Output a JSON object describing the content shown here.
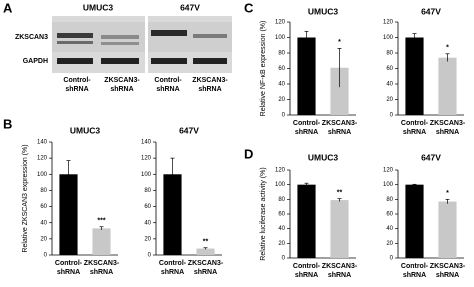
{
  "panels": [
    "A",
    "B",
    "C",
    "D"
  ],
  "blot": {
    "cell_lines": [
      "UMUC3",
      "647V"
    ],
    "rows": [
      "ZKSCAN3",
      "GAPDH"
    ],
    "lanes": [
      "Control-shRNA",
      "ZKSCAN3-shRNA"
    ]
  },
  "chart_data": [
    {
      "type": "bar",
      "title": "UMUC3",
      "ylabel": "Relative ZKSCAN3 expression (%)",
      "categories": [
        "Control-shRNA",
        "ZKSCAN3-shRNA"
      ],
      "values": [
        100,
        33
      ],
      "errors": [
        17,
        2
      ],
      "colors": [
        "#000000",
        "#c8c8c8"
      ],
      "annotation": "***",
      "ylim": [
        0,
        140
      ],
      "yticks": [
        0,
        20,
        40,
        60,
        80,
        100,
        120,
        140
      ]
    },
    {
      "type": "bar",
      "title": "647V",
      "categories": [
        "Control-shRNA",
        "ZKSCAN3-shRNA"
      ],
      "values": [
        100,
        8
      ],
      "errors": [
        20,
        1
      ],
      "colors": [
        "#000000",
        "#c8c8c8"
      ],
      "annotation": "**",
      "ylim": [
        0,
        140
      ],
      "yticks": [
        0,
        20,
        40,
        60,
        80,
        100,
        120,
        140
      ]
    },
    {
      "type": "bar",
      "title": "UMUC3",
      "ylabel": "Relative NF-κB expression (%)",
      "categories": [
        "Control-shRNA",
        "ZKSCAN3-shRNA"
      ],
      "values": [
        100,
        61
      ],
      "errors": [
        8,
        25
      ],
      "colors": [
        "#000000",
        "#c8c8c8"
      ],
      "annotation": "*",
      "ylim": [
        0,
        120
      ],
      "yticks": [
        0,
        20,
        40,
        60,
        80,
        100,
        120
      ]
    },
    {
      "type": "bar",
      "title": "647V",
      "categories": [
        "Control-shRNA",
        "ZKSCAN3-shRNA"
      ],
      "values": [
        100,
        74
      ],
      "errors": [
        5,
        5
      ],
      "colors": [
        "#000000",
        "#c8c8c8"
      ],
      "annotation": "*",
      "ylim": [
        0,
        120
      ],
      "yticks": [
        0,
        20,
        40,
        60,
        80,
        100,
        120
      ]
    },
    {
      "type": "bar",
      "title": "UMUC3",
      "ylabel": "Relative luciferase activity (%)",
      "categories": [
        "Control-shRNA",
        "ZKSCAN3-shRNA"
      ],
      "values": [
        100,
        79
      ],
      "errors": [
        2,
        2
      ],
      "colors": [
        "#000000",
        "#c8c8c8"
      ],
      "annotation": "**",
      "ylim": [
        0,
        120
      ],
      "yticks": [
        0,
        20,
        40,
        60,
        80,
        100,
        120
      ]
    },
    {
      "type": "bar",
      "title": "647V",
      "categories": [
        "Control-shRNA",
        "ZKSCAN3-shRNA"
      ],
      "values": [
        100,
        77
      ],
      "errors": [
        0.5,
        3
      ],
      "colors": [
        "#000000",
        "#c8c8c8"
      ],
      "annotation": "*",
      "ylim": [
        0,
        120
      ],
      "yticks": [
        0,
        20,
        40,
        60,
        80,
        100,
        120
      ]
    }
  ]
}
